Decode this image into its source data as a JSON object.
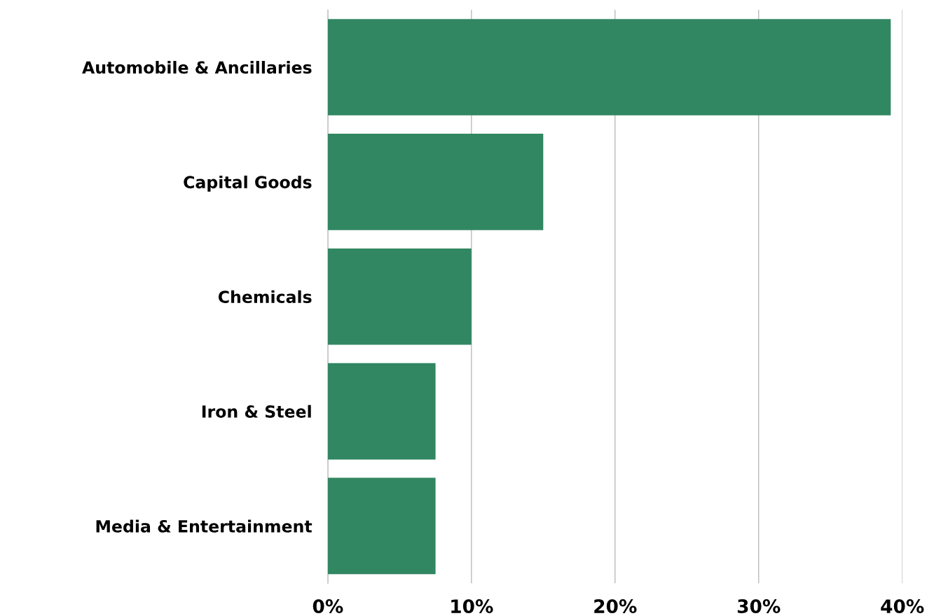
{
  "chart_data": {
    "type": "bar",
    "orientation": "horizontal",
    "categories": [
      "Automobile & Ancillaries",
      "Capital Goods",
      "Chemicals",
      "Iron & Steel",
      "Media & Entertainment"
    ],
    "values": [
      39.2,
      15.0,
      10.0,
      7.5,
      7.5
    ],
    "color": "#318762",
    "xlim": [
      0,
      40
    ],
    "xticks": [
      {
        "value": 0,
        "label": "0%"
      },
      {
        "value": 10,
        "label": "10%"
      },
      {
        "value": 20,
        "label": "20%"
      },
      {
        "value": 30,
        "label": "30%"
      },
      {
        "value": 40,
        "label": "40%"
      }
    ],
    "grid": "x"
  }
}
